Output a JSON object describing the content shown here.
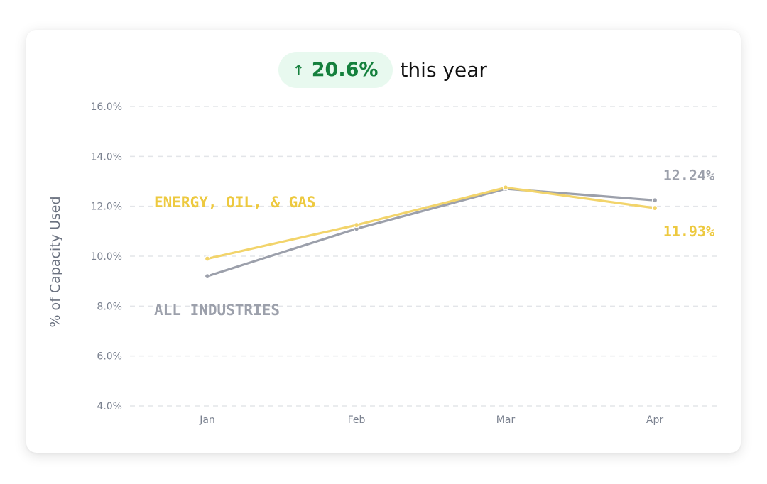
{
  "headline": {
    "arrow_icon": "arrow-up-icon",
    "arrow_glyph": "↑",
    "change_value": "20.6%",
    "subtitle": "this year",
    "badge_color": "#15803d",
    "badge_background": "#e8f9ef"
  },
  "chart_data": {
    "type": "line",
    "x": [
      "Jan",
      "Feb",
      "Mar",
      "Apr"
    ],
    "ylabel": "% of Capacity Used",
    "xlabel": "",
    "title": "",
    "ylim": [
      4,
      16
    ],
    "yticks": [
      4,
      6,
      8,
      10,
      12,
      14,
      16
    ],
    "ytick_labels": [
      "4.0%",
      "6.0%",
      "8.0%",
      "10.0%",
      "12.0%",
      "14.0%",
      "16.0%"
    ],
    "grid": "horizontal dashed",
    "series": [
      {
        "name": "ALL INDUSTRIES",
        "values": [
          9.2,
          11.1,
          12.7,
          12.24
        ],
        "color": "#9ca0ab",
        "end_label": "12.24%"
      },
      {
        "name": "ENERGY, OIL, & GAS",
        "values": [
          9.9,
          11.25,
          12.75,
          11.93
        ],
        "color": "#f2d46b",
        "label_color": "#edc93f",
        "end_label": "11.93%"
      }
    ]
  }
}
